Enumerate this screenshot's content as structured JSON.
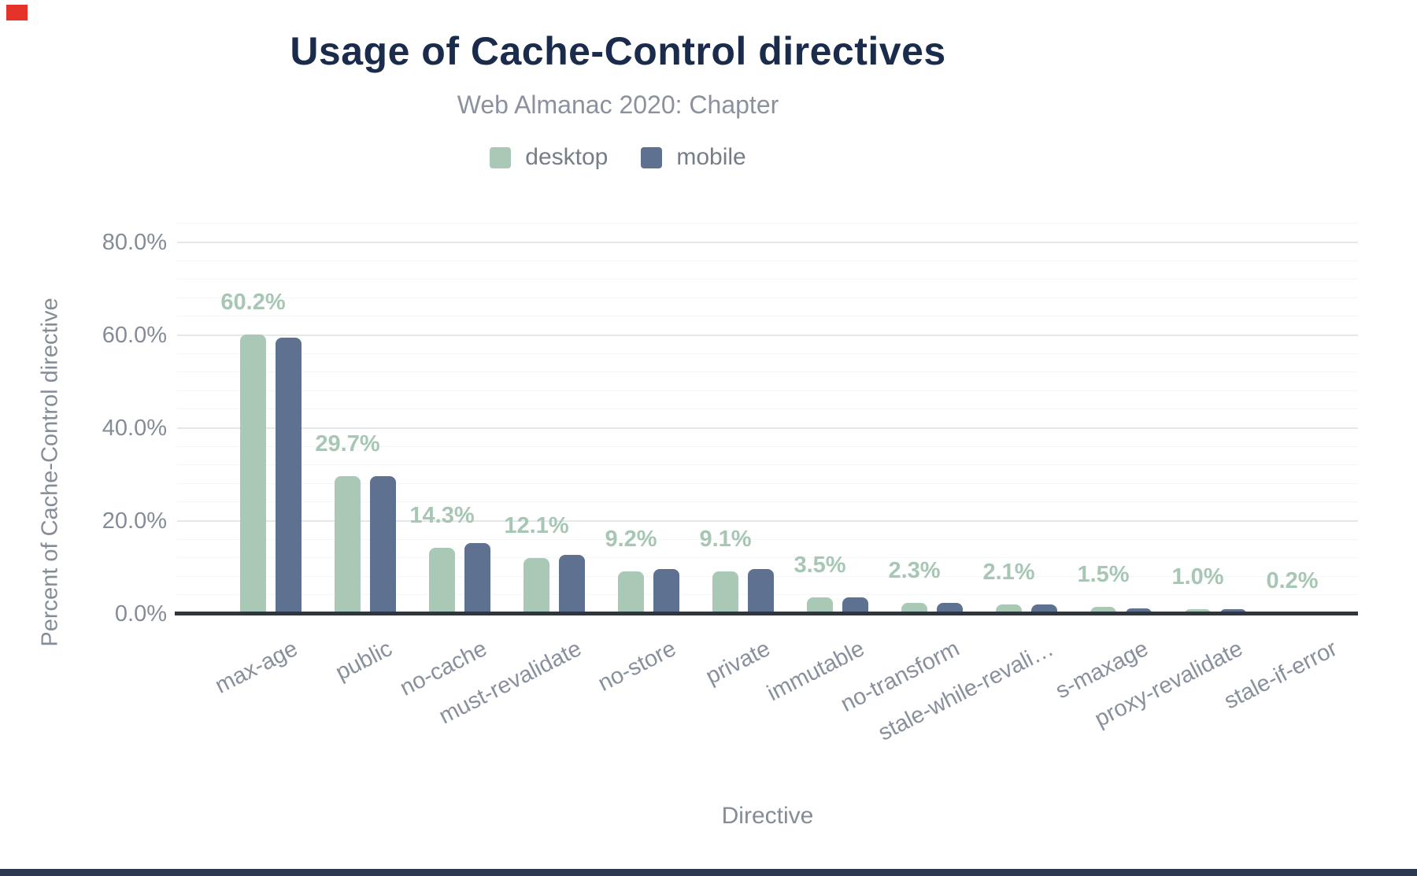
{
  "header": {
    "title": "Usage of Cache-Control directives",
    "subtitle": "Web Almanac 2020: Chapter"
  },
  "legend": [
    {
      "label": "desktop",
      "color": "#a9c9b6"
    },
    {
      "label": "mobile",
      "color": "#5e7190"
    }
  ],
  "axes": {
    "y_title": "Percent of Cache-Control directive",
    "x_title": "Directive",
    "y_tick_labels": [
      "0.0%",
      "20.0%",
      "40.0%",
      "60.0%",
      "80.0%"
    ],
    "y_tick_values": [
      0,
      20,
      40,
      60,
      80
    ]
  },
  "chart_data": {
    "type": "bar",
    "title": "Usage of Cache-Control directives",
    "subtitle": "Web Almanac 2020: Chapter",
    "xlabel": "Directive",
    "ylabel": "Percent of Cache-Control directive",
    "ylim": [
      0,
      88
    ],
    "y_major_ticks": [
      0,
      20,
      40,
      60,
      80
    ],
    "y_minor_step": 4,
    "grid": "horizontal",
    "legend_position": "top",
    "categories": [
      "max-age",
      "public",
      "no-cache",
      "must-revalidate",
      "no-store",
      "private",
      "immutable",
      "no-transform",
      "stale-while-revalidate",
      "s-maxage",
      "proxy-revalidate",
      "stale-if-error"
    ],
    "category_display": [
      "max-age",
      "public",
      "no-cache",
      "must-revalidate",
      "no-store",
      "private",
      "immutable",
      "no-transform",
      "stale-while-revali…",
      "s-maxage",
      "proxy-revalidate",
      "stale-if-error"
    ],
    "series": [
      {
        "name": "desktop",
        "color": "#a9c9b6",
        "values": [
          60.2,
          29.7,
          14.3,
          12.1,
          9.2,
          9.1,
          3.5,
          2.3,
          2.1,
          1.5,
          1.0,
          0.2
        ]
      },
      {
        "name": "mobile",
        "color": "#5e7190",
        "values": [
          59.5,
          29.7,
          15.2,
          12.7,
          9.6,
          9.6,
          3.6,
          2.4,
          2.1,
          1.2,
          1.0,
          0.2
        ]
      }
    ],
    "bar_labels": [
      "60.2%",
      "29.7%",
      "14.3%",
      "12.1%",
      "9.2%",
      "9.1%",
      "3.5%",
      "2.3%",
      "2.1%",
      "1.5%",
      "1.0%",
      "0.2%"
    ],
    "bar_label_color": "#a7c6b4",
    "bar_label_series": "desktop"
  },
  "decor": {
    "bottom_bar_color": "#2b3850",
    "corner_marker_color": "#e5332b"
  }
}
